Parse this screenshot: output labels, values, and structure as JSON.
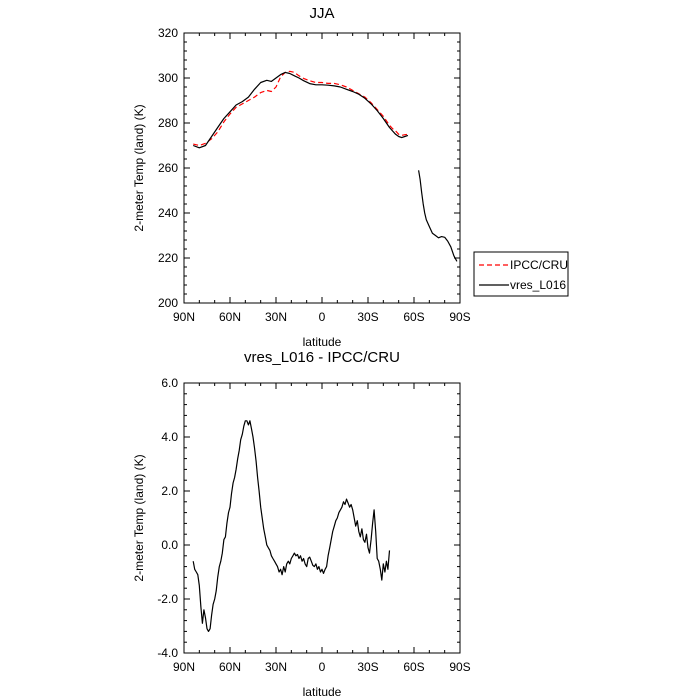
{
  "chart_data": [
    {
      "type": "line",
      "title": "JJA",
      "xlabel": "latitude",
      "ylabel": "2-meter Temp (land) (K)",
      "xlim": [
        90,
        -90
      ],
      "ylim": [
        200,
        320
      ],
      "xticks": [
        90,
        60,
        30,
        0,
        -30,
        -60,
        -90
      ],
      "xtick_labels": [
        "90N",
        "60N",
        "30N",
        "0",
        "30S",
        "60S",
        "90S"
      ],
      "yticks": [
        200,
        220,
        240,
        260,
        280,
        300,
        320
      ],
      "ytick_labels": [
        "200",
        "220",
        "240",
        "260",
        "280",
        "300",
        "320"
      ],
      "legend_position": "right",
      "series": [
        {
          "name": "IPCC/CRU",
          "color": "#ff0000",
          "dash": true,
          "segments": [
            [
              [
                84,
                270.6
              ],
              [
                80,
                270
              ],
              [
                76,
                271
              ],
              [
                72,
                273
              ],
              [
                68,
                276
              ],
              [
                64,
                280.5
              ],
              [
                60,
                284
              ],
              [
                56,
                287
              ],
              [
                52,
                288.5
              ],
              [
                48,
                290
              ],
              [
                44,
                291.5
              ],
              [
                40,
                293.5
              ],
              [
                36,
                294.5
              ],
              [
                33,
                294
              ],
              [
                30,
                296
              ],
              [
                27,
                300.5
              ],
              [
                24,
                302.5
              ],
              [
                21,
                303
              ],
              [
                18,
                302.5
              ],
              [
                15,
                301
              ],
              [
                12,
                299.8
              ],
              [
                8,
                298.8
              ],
              [
                4,
                298
              ],
              [
                0,
                298
              ],
              [
                -4,
                297.6
              ],
              [
                -8,
                297.6
              ],
              [
                -12,
                297
              ],
              [
                -16,
                296
              ],
              [
                -20,
                294.5
              ],
              [
                -24,
                293
              ],
              [
                -28,
                291.5
              ],
              [
                -32,
                289
              ],
              [
                -36,
                286
              ],
              [
                -40,
                283
              ],
              [
                -44,
                279
              ],
              [
                -46,
                277.5
              ],
              [
                -48,
                276.5
              ],
              [
                -50,
                275
              ],
              [
                -52,
                274.5
              ],
              [
                -54,
                274.8
              ],
              [
                -56,
                275
              ]
            ]
          ]
        },
        {
          "name": "vres_L016",
          "color": "#000000",
          "dash": false,
          "segments": [
            [
              [
                84,
                270
              ],
              [
                80,
                269
              ],
              [
                76,
                270
              ],
              [
                72,
                274
              ],
              [
                68,
                278
              ],
              [
                64,
                282
              ],
              [
                60,
                285
              ],
              [
                56,
                288
              ],
              [
                52,
                289.5
              ],
              [
                48,
                291.5
              ],
              [
                44,
                295
              ],
              [
                40,
                298
              ],
              [
                36,
                299
              ],
              [
                33,
                298.5
              ],
              [
                30,
                300
              ],
              [
                27,
                301.5
              ],
              [
                24,
                302.5
              ],
              [
                21,
                302
              ],
              [
                18,
                301
              ],
              [
                15,
                300
              ],
              [
                12,
                298.8
              ],
              [
                8,
                297.5
              ],
              [
                4,
                297
              ],
              [
                0,
                297
              ],
              [
                -4,
                296.8
              ],
              [
                -8,
                296.5
              ],
              [
                -12,
                296
              ],
              [
                -16,
                295
              ],
              [
                -20,
                294
              ],
              [
                -24,
                292.8
              ],
              [
                -28,
                291
              ],
              [
                -32,
                288.5
              ],
              [
                -36,
                285.5
              ],
              [
                -40,
                282
              ],
              [
                -44,
                278
              ],
              [
                -46,
                276.5
              ],
              [
                -48,
                275
              ],
              [
                -50,
                274
              ],
              [
                -52,
                273.5
              ],
              [
                -54,
                274
              ],
              [
                -56,
                274.5
              ]
            ],
            [
              [
                -63,
                259
              ],
              [
                -64,
                255
              ],
              [
                -65,
                249
              ],
              [
                -66,
                244
              ],
              [
                -67,
                240
              ],
              [
                -68,
                237
              ],
              [
                -70,
                234
              ],
              [
                -72,
                231
              ],
              [
                -74,
                230
              ],
              [
                -76,
                229
              ],
              [
                -78,
                229.5
              ],
              [
                -80,
                229.2
              ],
              [
                -82,
                227.5
              ],
              [
                -84,
                225
              ],
              [
                -86,
                221
              ],
              [
                -88,
                218.5
              ]
            ]
          ]
        }
      ]
    },
    {
      "type": "line",
      "title": "vres_L016 - IPCC/CRU",
      "xlabel": "latitude",
      "ylabel": "2-meter Temp (land) (K)",
      "xlim": [
        90,
        -90
      ],
      "ylim": [
        -4,
        6
      ],
      "xticks": [
        90,
        60,
        30,
        0,
        -30,
        -60,
        -90
      ],
      "xtick_labels": [
        "90N",
        "60N",
        "30N",
        "0",
        "30S",
        "60S",
        "90S"
      ],
      "yticks": [
        -4,
        -2,
        0,
        2,
        4,
        6
      ],
      "ytick_labels": [
        "-4.0",
        "-2.0",
        "0.0",
        "2.0",
        "4.0",
        "6.0"
      ],
      "series": [
        {
          "color": "#000000",
          "dash": false,
          "segments": [
            [
              [
                84,
                -0.6
              ],
              [
                83,
                -0.9
              ],
              [
                82,
                -1.0
              ],
              [
                81,
                -1.1
              ],
              [
                80,
                -1.5
              ],
              [
                79,
                -2.3
              ],
              [
                78,
                -2.9
              ],
              [
                77,
                -2.4
              ],
              [
                76,
                -2.7
              ],
              [
                75,
                -3.1
              ],
              [
                74,
                -3.2
              ],
              [
                73,
                -3.1
              ],
              [
                72,
                -2.6
              ],
              [
                71,
                -2.2
              ],
              [
                70,
                -2.0
              ],
              [
                69,
                -1.7
              ],
              [
                68,
                -1.2
              ],
              [
                67,
                -0.8
              ],
              [
                66,
                -0.6
              ],
              [
                65,
                -0.3
              ],
              [
                64,
                0.2
              ],
              [
                63,
                0.3
              ],
              [
                62,
                0.8
              ],
              [
                61,
                1.2
              ],
              [
                60,
                1.4
              ],
              [
                59,
                1.9
              ],
              [
                58,
                2.3
              ],
              [
                57,
                2.5
              ],
              [
                56,
                2.8
              ],
              [
                55,
                3.2
              ],
              [
                54,
                3.5
              ],
              [
                53,
                3.9
              ],
              [
                52,
                4.1
              ],
              [
                51,
                4.4
              ],
              [
                50,
                4.6
              ],
              [
                49,
                4.6
              ],
              [
                48,
                4.45
              ],
              [
                47,
                4.6
              ],
              [
                46,
                4.3
              ],
              [
                45,
                4.0
              ],
              [
                44,
                3.6
              ],
              [
                43,
                3.1
              ],
              [
                42,
                2.5
              ],
              [
                41,
                2.0
              ],
              [
                40,
                1.4
              ],
              [
                39,
                1.0
              ],
              [
                38,
                0.6
              ],
              [
                37,
                0.3
              ],
              [
                36,
                0.0
              ],
              [
                35,
                -0.1
              ],
              [
                34,
                -0.2
              ],
              [
                33,
                -0.4
              ],
              [
                32,
                -0.5
              ],
              [
                31,
                -0.6
              ],
              [
                30,
                -0.7
              ],
              [
                29,
                -0.8
              ],
              [
                28,
                -1.0
              ],
              [
                27,
                -0.9
              ],
              [
                26,
                -1.1
              ],
              [
                25,
                -0.8
              ],
              [
                24,
                -1.0
              ],
              [
                23,
                -0.7
              ],
              [
                22,
                -0.6
              ],
              [
                21,
                -0.7
              ],
              [
                20,
                -0.5
              ],
              [
                19,
                -0.4
              ],
              [
                18,
                -0.3
              ],
              [
                17,
                -0.4
              ],
              [
                16,
                -0.35
              ],
              [
                15,
                -0.5
              ],
              [
                14,
                -0.4
              ],
              [
                13,
                -0.6
              ],
              [
                12,
                -0.5
              ],
              [
                11,
                -0.7
              ],
              [
                10,
                -0.8
              ],
              [
                9,
                -0.5
              ],
              [
                8,
                -0.45
              ],
              [
                7,
                -0.6
              ],
              [
                6,
                -0.75
              ],
              [
                5,
                -0.8
              ],
              [
                4,
                -0.7
              ],
              [
                3,
                -0.9
              ],
              [
                2,
                -0.8
              ],
              [
                1,
                -1.0
              ],
              [
                0,
                -0.9
              ],
              [
                -1,
                -1.05
              ],
              [
                -2,
                -0.9
              ],
              [
                -3,
                -0.8
              ],
              [
                -4,
                -0.4
              ],
              [
                -5,
                -0.1
              ],
              [
                -6,
                0.2
              ],
              [
                -7,
                0.5
              ],
              [
                -8,
                0.7
              ],
              [
                -9,
                0.9
              ],
              [
                -10,
                1.0
              ],
              [
                -11,
                1.2
              ],
              [
                -12,
                1.3
              ],
              [
                -13,
                1.4
              ],
              [
                -14,
                1.6
              ],
              [
                -15,
                1.5
              ],
              [
                -16,
                1.7
              ],
              [
                -17,
                1.55
              ],
              [
                -18,
                1.4
              ],
              [
                -19,
                1.5
              ],
              [
                -20,
                1.3
              ],
              [
                -21,
                1.0
              ],
              [
                -22,
                0.7
              ],
              [
                -23,
                0.9
              ],
              [
                -24,
                0.5
              ],
              [
                -25,
                0.3
              ],
              [
                -26,
                0.6
              ],
              [
                -27,
                0.2
              ],
              [
                -28,
                0.1
              ],
              [
                -29,
                0.4
              ],
              [
                -30,
                -0.1
              ],
              [
                -31,
                -0.3
              ],
              [
                -32,
                0.2
              ],
              [
                -33,
                0.8
              ],
              [
                -34,
                1.3
              ],
              [
                -35,
                0.5
              ],
              [
                -36,
                -0.5
              ],
              [
                -37,
                -0.6
              ],
              [
                -38,
                -0.9
              ],
              [
                -39,
                -1.3
              ],
              [
                -40,
                -0.7
              ],
              [
                -41,
                -1.0
              ],
              [
                -42,
                -0.6
              ],
              [
                -43,
                -0.9
              ],
              [
                -44,
                -0.2
              ]
            ]
          ]
        }
      ]
    }
  ]
}
